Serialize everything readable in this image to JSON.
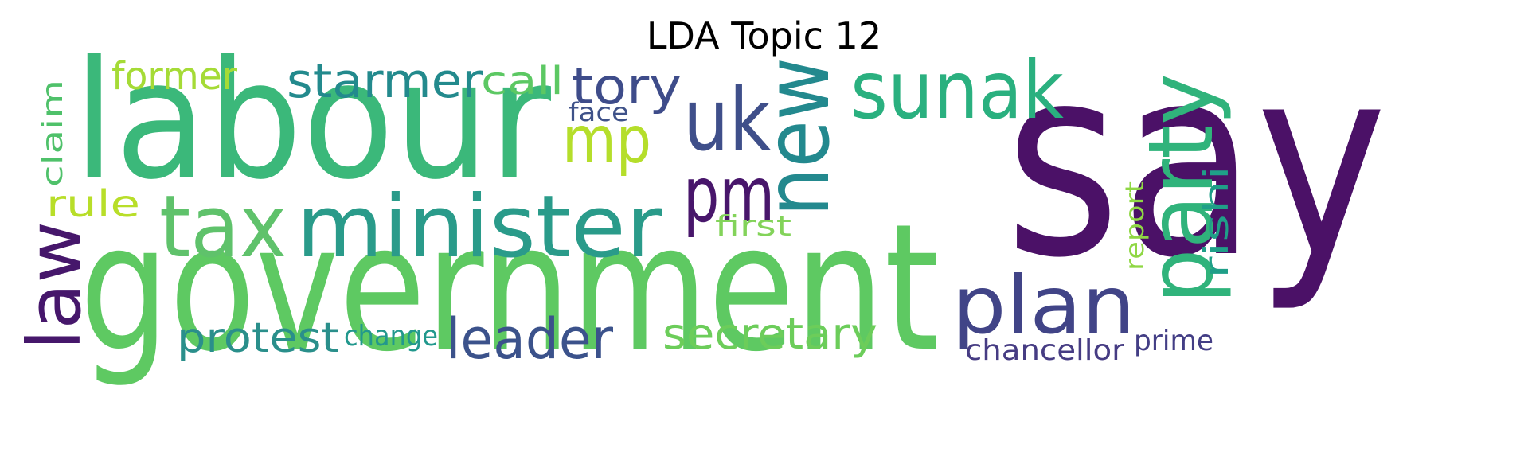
{
  "title": "LDA Topic 12",
  "words": [
    {
      "text": "say",
      "color": "#4b1167"
    },
    {
      "text": "labour",
      "color": "#3bb87a"
    },
    {
      "text": "government",
      "color": "#5ec962"
    },
    {
      "text": "minister",
      "color": "#2a9b8a"
    },
    {
      "text": "tax",
      "color": "#5fc26b"
    },
    {
      "text": "uk",
      "color": "#3f4f8a"
    },
    {
      "text": "sunak",
      "color": "#2ab07f"
    },
    {
      "text": "new",
      "color": "#23898e"
    },
    {
      "text": "party",
      "color": "#30b37b"
    },
    {
      "text": "plan",
      "color": "#414487"
    },
    {
      "text": "pm",
      "color": "#48166b"
    },
    {
      "text": "mp",
      "color": "#b5de2b"
    },
    {
      "text": "tory",
      "color": "#3e4c8a"
    },
    {
      "text": "starmer",
      "color": "#238a8d"
    },
    {
      "text": "law",
      "color": "#46176b"
    },
    {
      "text": "leader",
      "color": "#3b528b"
    },
    {
      "text": "secretary",
      "color": "#6ccd5a"
    },
    {
      "text": "protest",
      "color": "#2a8f8b"
    },
    {
      "text": "former",
      "color": "#a5db36"
    },
    {
      "text": "call",
      "color": "#5cc863"
    },
    {
      "text": "claim",
      "color": "#4fc16a"
    },
    {
      "text": "rule",
      "color": "#b8de29"
    },
    {
      "text": "rishi",
      "color": "#1f9f88"
    },
    {
      "text": "change",
      "color": "#22988d"
    },
    {
      "text": "face",
      "color": "#3f5289"
    },
    {
      "text": "first",
      "color": "#83d35a"
    },
    {
      "text": "report",
      "color": "#8fd744"
    },
    {
      "text": "chancellor",
      "color": "#463c83"
    },
    {
      "text": "prime",
      "color": "#433e85"
    }
  ]
}
